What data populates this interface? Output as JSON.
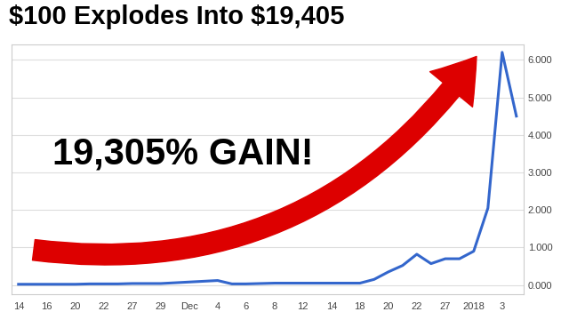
{
  "chart_data": {
    "type": "line",
    "title": "$100 Explodes Into $19,405",
    "annotation": "19,305% GAIN!",
    "categories": [
      "14",
      null,
      "16",
      null,
      "20",
      null,
      "22",
      null,
      "27",
      null,
      "29",
      null,
      "Dec",
      null,
      "4",
      null,
      "6",
      null,
      "8",
      null,
      "12",
      null,
      "14",
      null,
      "18",
      null,
      "20",
      null,
      "22",
      null,
      "27",
      null,
      "2018",
      null,
      "3",
      null
    ],
    "values": [
      0.02,
      0.02,
      0.02,
      0.02,
      0.02,
      0.03,
      0.03,
      0.03,
      0.04,
      0.04,
      0.04,
      0.06,
      0.08,
      0.1,
      0.12,
      0.03,
      0.03,
      0.04,
      0.05,
      0.05,
      0.05,
      0.05,
      0.05,
      0.05,
      0.05,
      0.15,
      0.35,
      0.52,
      0.82,
      0.57,
      0.7,
      0.7,
      0.9,
      2.05,
      6.2,
      4.5
    ],
    "color": "#3366cc",
    "line_style": "solid",
    "ylim": [
      -0.25,
      6.4
    ],
    "yticks": [
      {
        "value": 0,
        "label": "0.000"
      },
      {
        "value": 1,
        "label": "1.000"
      },
      {
        "value": 2,
        "label": "2.000"
      },
      {
        "value": 3,
        "label": "3.000"
      },
      {
        "value": 4,
        "label": "4.000"
      },
      {
        "value": 5,
        "label": "5.000"
      },
      {
        "value": 6,
        "label": "6.000"
      }
    ],
    "grid": true
  }
}
